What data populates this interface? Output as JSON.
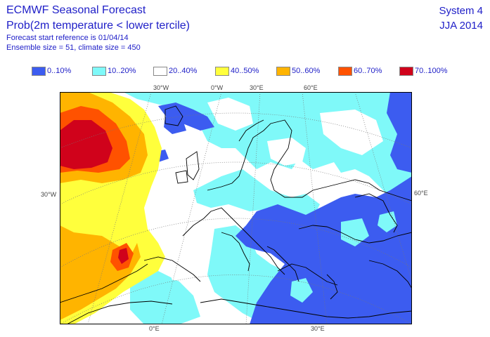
{
  "header": {
    "title": "ECMWF Seasonal Forecast",
    "subtitle": "Prob(2m temperature < lower tercile)",
    "start_ref": "Forecast start reference is 01/04/14",
    "ensemble": "Ensemble size = 51, climate size = 450",
    "system": "System 4",
    "season": "JJA 2014"
  },
  "legend": [
    {
      "label": "0..10%",
      "color": "#3c5cf0"
    },
    {
      "label": "10..20%",
      "color": "#7ff9f9"
    },
    {
      "label": "20..40%",
      "color": "#ffffff"
    },
    {
      "label": "40..50%",
      "color": "#ffff3c"
    },
    {
      "label": "50..60%",
      "color": "#ffb400"
    },
    {
      "label": "60..70%",
      "color": "#ff5200"
    },
    {
      "label": "70..100%",
      "color": "#d0021b"
    }
  ],
  "map": {
    "top_labels": [
      "30°W",
      "0°W",
      "30°E",
      "60°E"
    ],
    "left_label": "30°W",
    "right_label": "60°E",
    "bottom_labels": [
      "0°E",
      "30°E"
    ]
  }
}
